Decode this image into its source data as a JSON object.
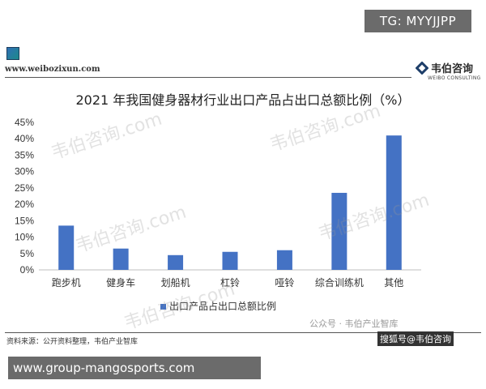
{
  "banner": {
    "text": "TG: MYYJJPP"
  },
  "header": {
    "site_url": "www.weibozixun.com",
    "brand_name": "韦伯咨询",
    "brand_sub": "WEIBO CONSULTING"
  },
  "watermark": {
    "text": "韦伯咨询.com"
  },
  "footer": {
    "source": "资料来源：公开资料整理，韦伯产业智库",
    "wechat": "公众号 · 韦伯产业智库",
    "caption": "搜狐号@韦伯咨询",
    "url": "www.group-mangosports.com"
  },
  "colors": {
    "bar": "#4472c4",
    "axis": "#bfbfbf",
    "text": "#333333"
  },
  "chart_data": {
    "type": "bar",
    "title": "2021 年我国健身器材行业出口产品占出口总额比例（%）",
    "categories": [
      "跑步机",
      "健身车",
      "划船机",
      "杠铃",
      "哑铃",
      "综合训练机",
      "其他"
    ],
    "series": [
      {
        "name": "出口产品占出口总额比例",
        "values": [
          13.5,
          6.5,
          4.5,
          5.5,
          6.0,
          23.5,
          41.0
        ]
      }
    ],
    "y_ticks": [
      "0%",
      "5%",
      "10%",
      "15%",
      "20%",
      "25%",
      "30%",
      "35%",
      "40%",
      "45%"
    ],
    "ylim": [
      0,
      45
    ],
    "grid": false,
    "legend": "bottom-center"
  }
}
